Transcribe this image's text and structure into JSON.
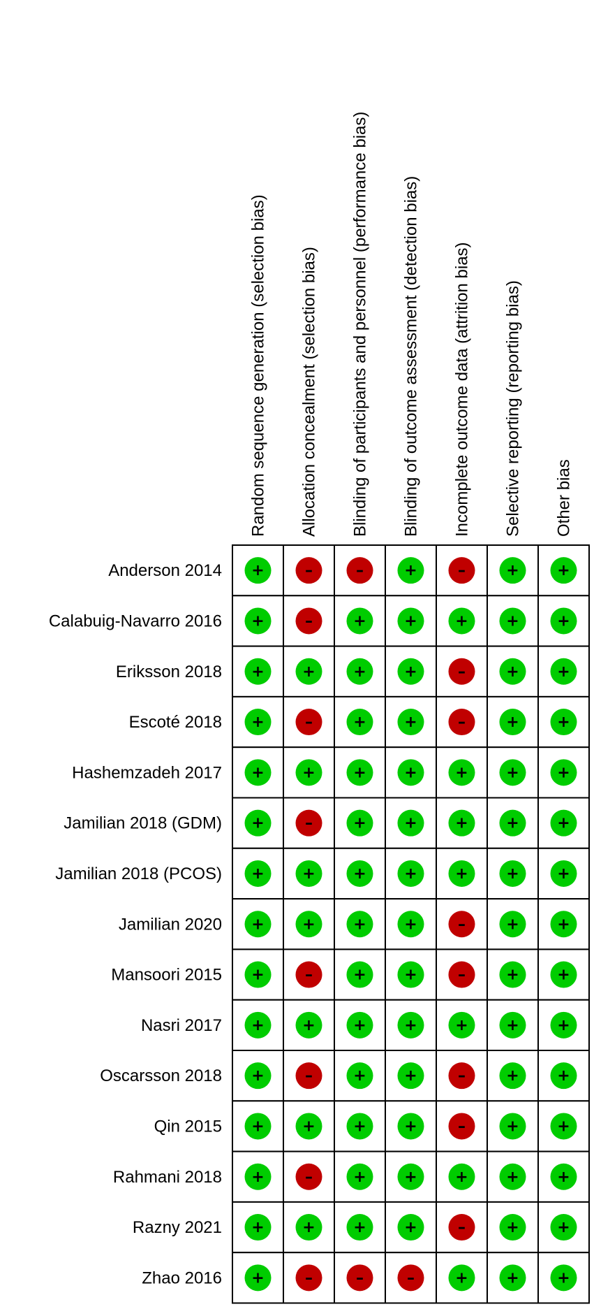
{
  "chart_data": {
    "type": "table",
    "columns": [
      "Random sequence generation (selection bias)",
      "Allocation concealment (selection bias)",
      "Blinding of participants and personnel (performance bias)",
      "Blinding of outcome assessment (detection bias)",
      "Incomplete outcome data (attrition bias)",
      "Selective reporting (reporting bias)",
      "Other bias"
    ],
    "rows": [
      {
        "study": "Anderson 2014",
        "ratings": [
          "+",
          "-",
          "-",
          "+",
          "-",
          "+",
          "+"
        ]
      },
      {
        "study": "Calabuig-Navarro 2016",
        "ratings": [
          "+",
          "-",
          "+",
          "+",
          "+",
          "+",
          "+"
        ]
      },
      {
        "study": "Eriksson 2018",
        "ratings": [
          "+",
          "+",
          "+",
          "+",
          "-",
          "+",
          "+"
        ]
      },
      {
        "study": "Escoté 2018",
        "ratings": [
          "+",
          "-",
          "+",
          "+",
          "-",
          "+",
          "+"
        ]
      },
      {
        "study": "Hashemzadeh 2017",
        "ratings": [
          "+",
          "+",
          "+",
          "+",
          "+",
          "+",
          "+"
        ]
      },
      {
        "study": "Jamilian 2018 (GDM)",
        "ratings": [
          "+",
          "-",
          "+",
          "+",
          "+",
          "+",
          "+"
        ]
      },
      {
        "study": "Jamilian 2018 (PCOS)",
        "ratings": [
          "+",
          "+",
          "+",
          "+",
          "+",
          "+",
          "+"
        ]
      },
      {
        "study": "Jamilian 2020",
        "ratings": [
          "+",
          "+",
          "+",
          "+",
          "-",
          "+",
          "+"
        ]
      },
      {
        "study": "Mansoori 2015",
        "ratings": [
          "+",
          "-",
          "+",
          "+",
          "-",
          "+",
          "+"
        ]
      },
      {
        "study": "Nasri 2017",
        "ratings": [
          "+",
          "+",
          "+",
          "+",
          "+",
          "+",
          "+"
        ]
      },
      {
        "study": "Oscarsson 2018",
        "ratings": [
          "+",
          "-",
          "+",
          "+",
          "-",
          "+",
          "+"
        ]
      },
      {
        "study": "Qin 2015",
        "ratings": [
          "+",
          "+",
          "+",
          "+",
          "-",
          "+",
          "+"
        ]
      },
      {
        "study": "Rahmani 2018",
        "ratings": [
          "+",
          "-",
          "+",
          "+",
          "+",
          "+",
          "+"
        ]
      },
      {
        "study": "Razny 2021",
        "ratings": [
          "+",
          "+",
          "+",
          "+",
          "-",
          "+",
          "+"
        ]
      },
      {
        "study": "Zhao 2016",
        "ratings": [
          "+",
          "-",
          "-",
          "-",
          "+",
          "+",
          "+"
        ]
      }
    ],
    "legend_colors": {
      "+": "#00cc00",
      "-": "#c00000"
    }
  }
}
